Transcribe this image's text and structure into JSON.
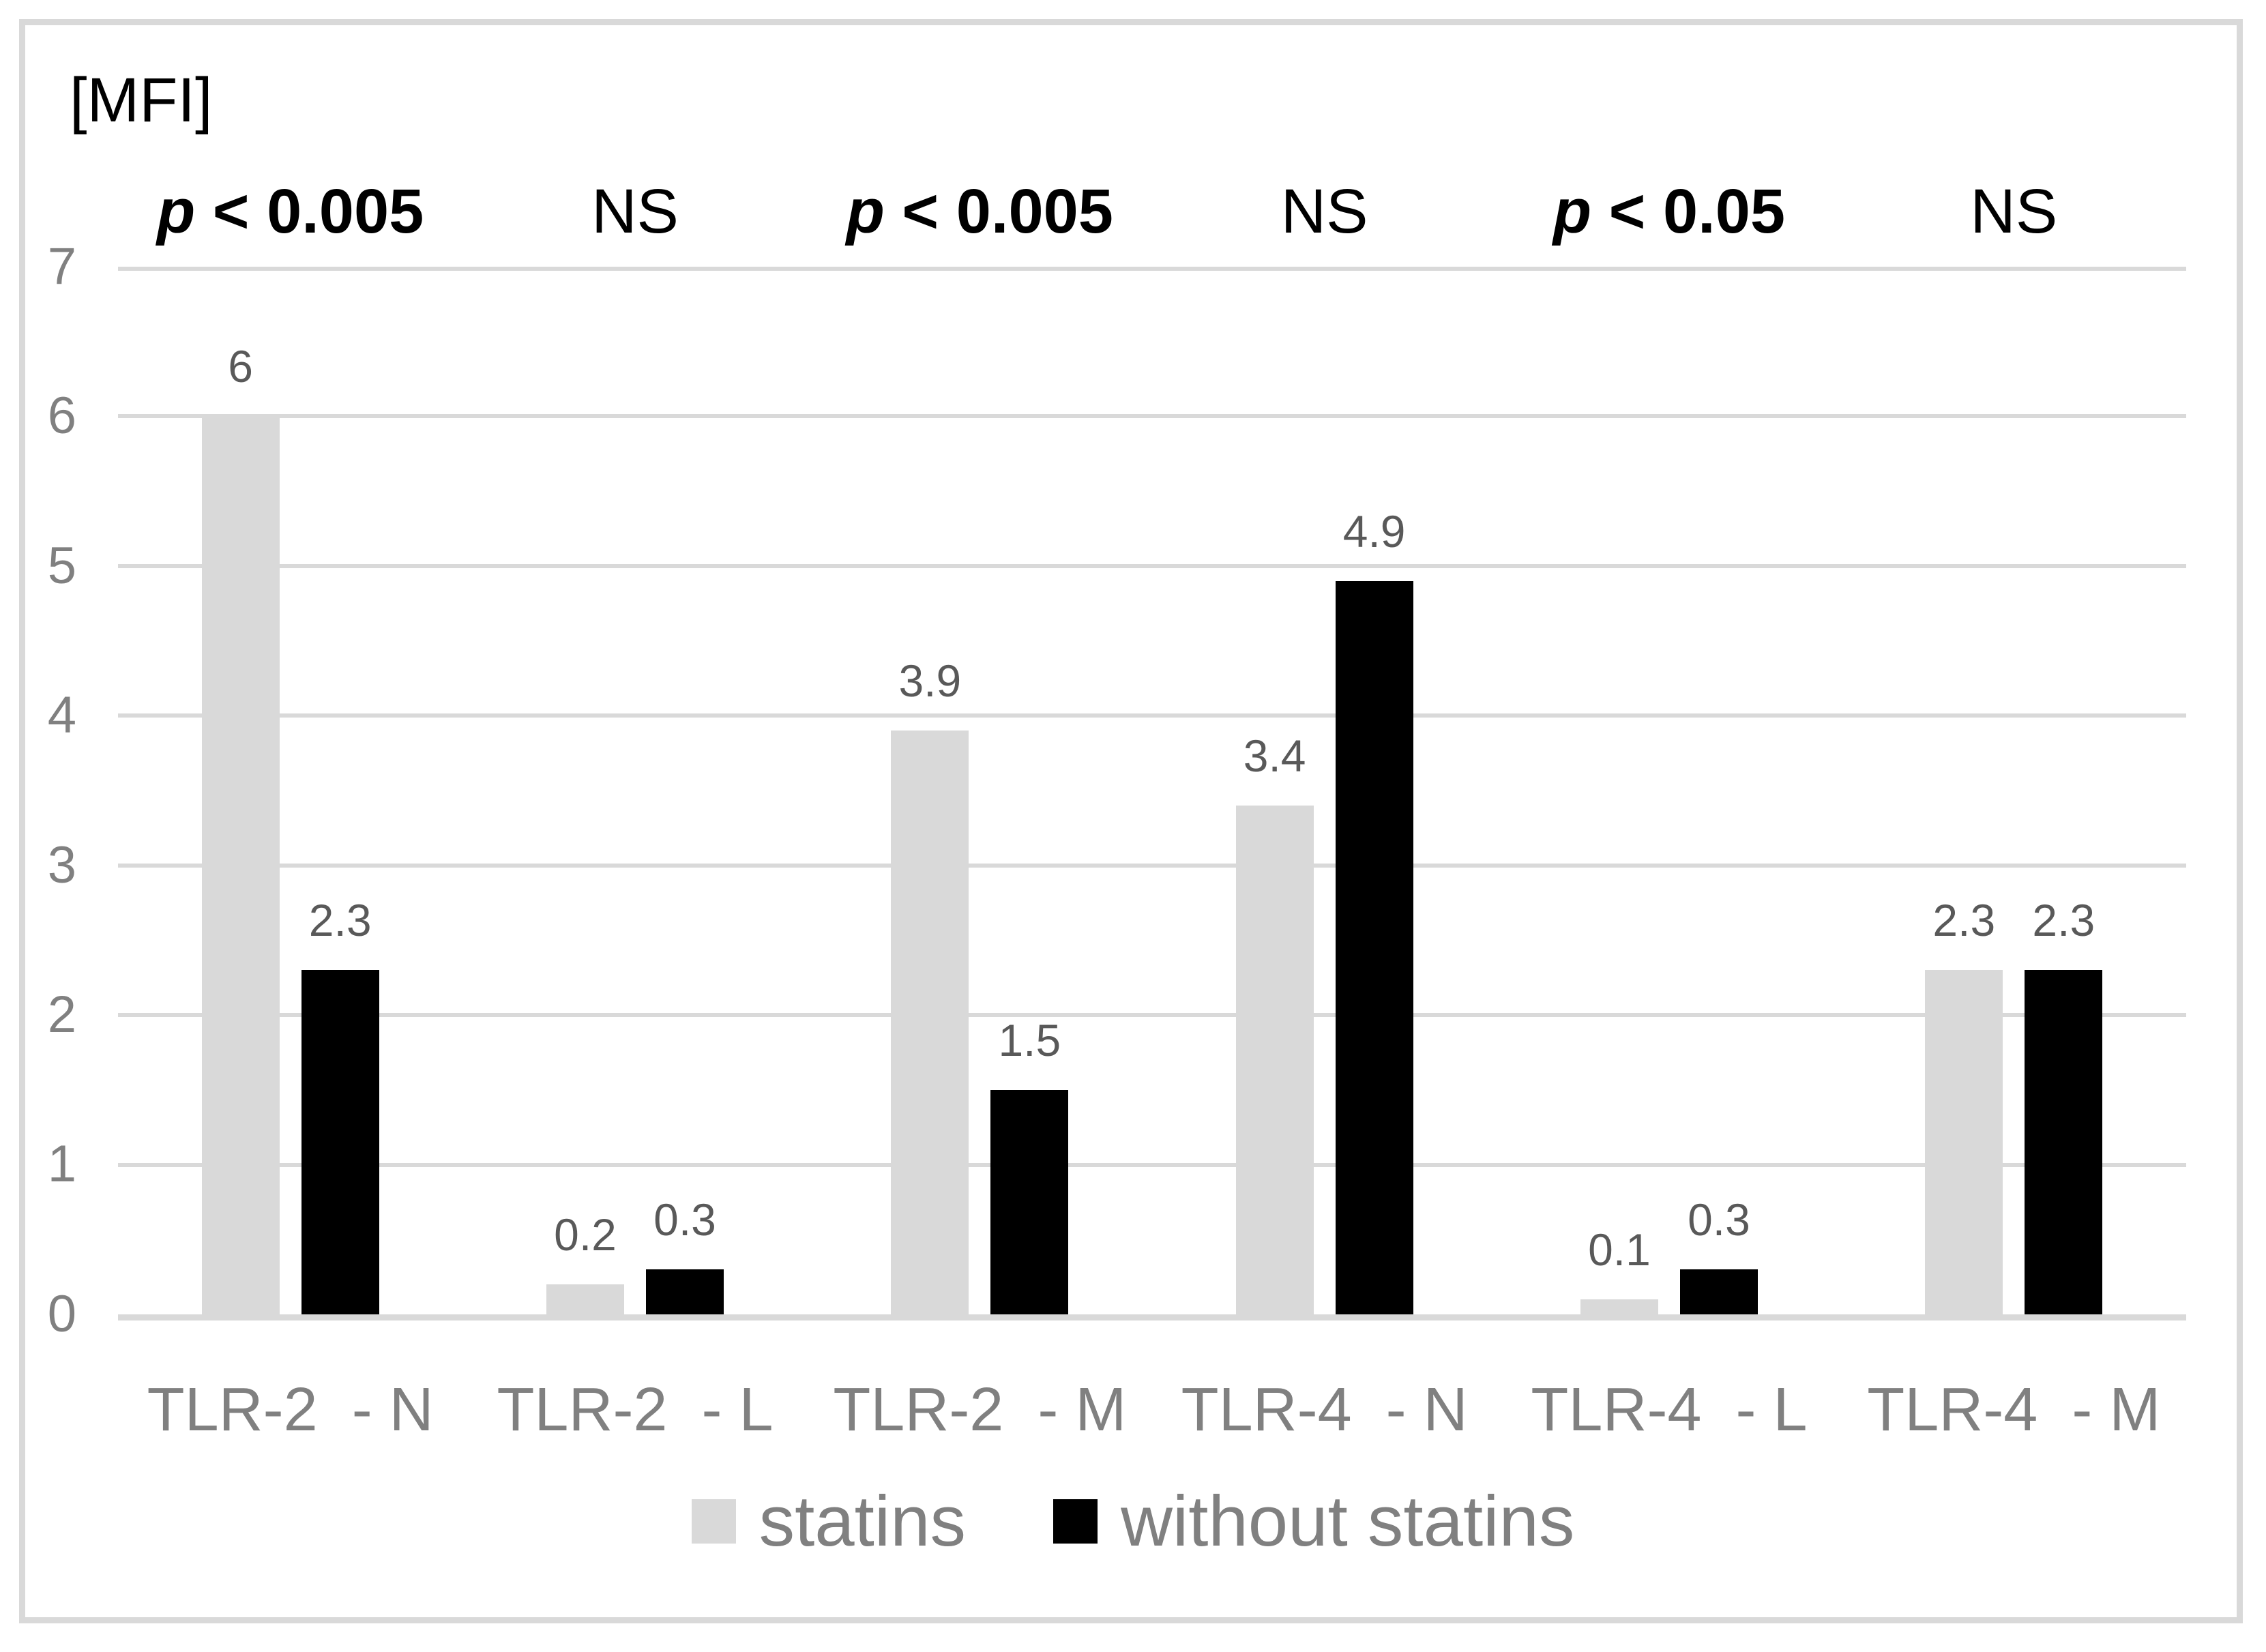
{
  "chart_data": {
    "type": "bar",
    "title": "",
    "unit_label": "[MFI]",
    "xlabel": "",
    "ylabel": "[MFI]",
    "ylim": [
      0,
      7
    ],
    "grid": true,
    "yticks_top_to_bottom": [
      "7",
      "6",
      "5",
      "4",
      "3",
      "2",
      "1",
      "0"
    ],
    "categories": [
      "TLR-2  - N",
      "TLR-2  - L",
      "TLR-2  - M",
      "TLR-4  - N",
      "TLR-4  - L",
      "TLR-4  - M"
    ],
    "p_annotations": [
      {
        "text": "p < 0.005",
        "significant": true
      },
      {
        "text": "NS",
        "significant": false
      },
      {
        "text": "p < 0.005",
        "significant": true
      },
      {
        "text": "NS",
        "significant": false
      },
      {
        "text": "p < 0.05",
        "significant": true
      },
      {
        "text": "NS",
        "significant": false
      }
    ],
    "series": [
      {
        "name": "statins",
        "color": "#d9d9d9",
        "values": [
          6,
          0.2,
          3.9,
          3.4,
          0.1,
          2.3
        ],
        "labels": [
          "6",
          "0.2",
          "3.9",
          "3.4",
          "0.1",
          "2.3"
        ]
      },
      {
        "name": "without statins",
        "color": "#000000",
        "values": [
          2.3,
          0.3,
          1.5,
          4.9,
          0.3,
          2.3
        ],
        "labels": [
          "2.3",
          "0.3",
          "1.5",
          "4.9",
          "0.3",
          "2.3"
        ]
      }
    ],
    "legend": {
      "position": "bottom",
      "entries": [
        "statins",
        "without statins"
      ]
    },
    "colors": {
      "gridline": "#d9d9d9",
      "axis_text": "#808080",
      "data_label": "#595959",
      "annotation_text": "#000000",
      "background": "#ffffff",
      "border": "#d9d9d9"
    }
  }
}
